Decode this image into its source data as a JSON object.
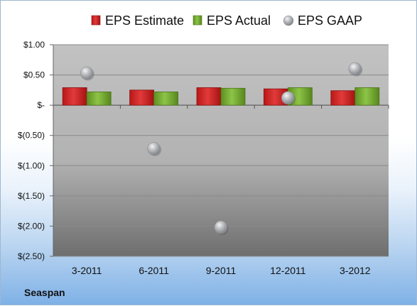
{
  "company": "Seaspan",
  "colors": {
    "estimate": "#d42a2a",
    "actual": "#7fb23a",
    "gaap": "#a9acb0"
  },
  "chart_data": {
    "type": "bar",
    "categories": [
      "3-2011",
      "6-2011",
      "9-2011",
      "12-2011",
      "3-2012"
    ],
    "series": [
      {
        "name": "EPS Estimate",
        "type": "bar",
        "values": [
          0.29,
          0.25,
          0.29,
          0.27,
          0.24
        ]
      },
      {
        "name": "EPS Actual",
        "type": "bar",
        "values": [
          0.22,
          0.22,
          0.28,
          0.29,
          0.29
        ]
      },
      {
        "name": "EPS GAAP",
        "type": "scatter",
        "values": [
          0.53,
          -0.72,
          -2.02,
          0.12,
          0.6
        ]
      }
    ],
    "y_ticks": [
      {
        "value": 1.0,
        "label": "$1.00"
      },
      {
        "value": 0.5,
        "label": "$0.50"
      },
      {
        "value": 0.0,
        "label": "$-"
      },
      {
        "value": -0.5,
        "label": "$(0.50)"
      },
      {
        "value": -1.0,
        "label": "$(1.00)"
      },
      {
        "value": -1.5,
        "label": "$(1.50)"
      },
      {
        "value": -2.0,
        "label": "$(2.00)"
      },
      {
        "value": -2.5,
        "label": "$(2.50)"
      }
    ],
    "ylim": [
      -2.5,
      1.0
    ],
    "grid": true,
    "legend": "top"
  }
}
